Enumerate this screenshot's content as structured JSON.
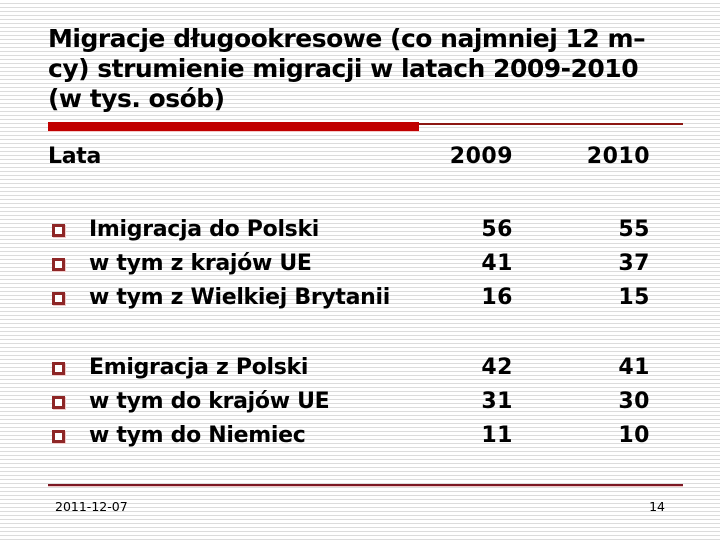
{
  "slide": {
    "title_lines": [
      "Migracje długookresowe (co najmniej 12 m–",
      "cy) strumienie migracji w latach 2009-2010",
      "(w tys. osób)"
    ],
    "table": {
      "header": {
        "label": "Lata",
        "col1": "2009",
        "col2": "2010"
      },
      "groups": [
        {
          "rows": [
            {
              "label": "Imigracja do Polski",
              "v2009": "56",
              "v2010": "55"
            },
            {
              "label": "w tym z krajów UE",
              "v2009": "41",
              "v2010": "37"
            },
            {
              "label": "w tym z Wielkiej Brytanii",
              "v2009": "16",
              "v2010": "15"
            }
          ]
        },
        {
          "rows": [
            {
              "label": "Emigracja z Polski",
              "v2009": "42",
              "v2010": "41"
            },
            {
              "label": "w tym do krajów UE",
              "v2009": "31",
              "v2010": "30"
            },
            {
              "label": "w tym do Niemiec",
              "v2009": "11",
              "v2010": "10"
            }
          ]
        }
      ]
    },
    "footer": {
      "date": "2011-12-07",
      "page_number": "14"
    },
    "colors": {
      "accent_bar": "#c00000",
      "accent_thin_line": "#8c1713",
      "bullet_border": "#8e2626",
      "footer_line": "#7c1823",
      "text": "#000000",
      "stripe": "#dcdcdc"
    }
  }
}
